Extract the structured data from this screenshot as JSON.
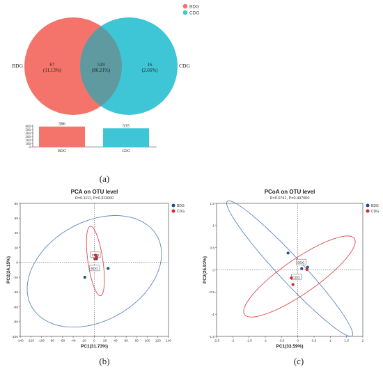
{
  "venn": {
    "legend": [
      {
        "name": "BDG",
        "color": "#f4736a"
      },
      {
        "name": "CDG",
        "color": "#3fc6d6"
      }
    ],
    "left_label": "BDG",
    "right_label": "CDG",
    "left_only": {
      "count": "67",
      "pct": "(11.13%)"
    },
    "shared": {
      "count": "519",
      "pct": "(86.21%)"
    },
    "right_only": {
      "count": "16",
      "pct": "(2.66%)"
    }
  },
  "panel_labels": {
    "a": "(a)",
    "b": "(b)",
    "c": "(c)"
  },
  "chart_data": [
    {
      "type": "bar",
      "categories": [
        "BDG",
        "CDG"
      ],
      "values": [
        586,
        535
      ],
      "data_labels": [
        "586",
        "535"
      ],
      "colors": [
        "#f4736a",
        "#3fc6d6"
      ],
      "ylim": [
        0,
        600
      ],
      "yticks": [
        0,
        100,
        200,
        300,
        400,
        500,
        600
      ]
    },
    {
      "type": "scatter",
      "title": "PCA on OTU level",
      "subtitle": "R=0.1111, P=0.311000",
      "xlabel": "PC1(31.73%)",
      "ylabel": "PC2(24.15%)",
      "xlim": [
        -140,
        140
      ],
      "ylim": [
        -100,
        80
      ],
      "xticks": [
        -140,
        -120,
        -100,
        -80,
        -60,
        -40,
        -20,
        0,
        20,
        40,
        60,
        80,
        100,
        120,
        140
      ],
      "yticks": [
        -100,
        -80,
        -60,
        -40,
        -20,
        0,
        20,
        40,
        60,
        80
      ],
      "legend": [
        {
          "name": "BDG",
          "color": "#1f4e8c"
        },
        {
          "name": "CDG",
          "color": "#d7262b"
        }
      ],
      "series": [
        {
          "name": "BDG",
          "color": "#1f4e8c",
          "points": [
            [
              -18,
              -20
            ],
            [
              26,
              -8
            ],
            [
              4,
              5
            ]
          ]
        },
        {
          "name": "CDG",
          "color": "#d7262b",
          "points": [
            [
              2,
              10
            ],
            [
              4,
              8
            ],
            [
              1,
              5
            ]
          ]
        }
      ],
      "ellipses": [
        {
          "group": "BDG",
          "color": "#5b86c0",
          "cx": 0,
          "cy": -12,
          "rx": 130,
          "ry": 70,
          "angle": 15
        },
        {
          "group": "CDG",
          "color": "#e0484c",
          "cx": 2,
          "cy": 2,
          "rx": 14,
          "ry": 48,
          "angle": 12
        }
      ],
      "annotations": [
        {
          "text": "CDG",
          "x": 2,
          "y": 10
        },
        {
          "text": "BDG",
          "x": 0,
          "y": -8
        }
      ]
    },
    {
      "type": "scatter",
      "title": "PCoA on OTU level",
      "subtitle": "R=0.0741, P=0.497000",
      "xlabel": "PC1(33.59%)",
      "ylabel": "PC2(25.91%)",
      "xlim": [
        -2.5,
        2
      ],
      "ylim": [
        -1.5,
        1.5
      ],
      "xticks": [
        -2.5,
        -2,
        -1.5,
        -1,
        -0.5,
        0,
        0.5,
        1,
        1.5,
        2
      ],
      "yticks": [
        -1.5,
        -1,
        -0.5,
        0,
        0.5,
        1,
        1.5
      ],
      "legend": [
        {
          "name": "BDG",
          "color": "#1f4e8c"
        },
        {
          "name": "CDG",
          "color": "#d7262b"
        }
      ],
      "series": [
        {
          "name": "BDG",
          "color": "#1f4e8c",
          "points": [
            [
              -0.3,
              0.38
            ],
            [
              0.12,
              0.03
            ],
            [
              0.3,
              0.06
            ]
          ]
        },
        {
          "name": "CDG",
          "color": "#d7262b",
          "points": [
            [
              -0.2,
              -0.18
            ],
            [
              -0.15,
              -0.33
            ],
            [
              0.28,
              0.01
            ]
          ]
        }
      ],
      "ellipses": [
        {
          "group": "BDG",
          "color": "#5b86c0",
          "cx": -0.25,
          "cy": 0.03,
          "rx": 2.45,
          "ry": 0.32,
          "angle": -38
        },
        {
          "group": "CDG",
          "color": "#e0484c",
          "cx": 0.05,
          "cy": -0.15,
          "rx": 1.9,
          "ry": 0.42,
          "angle": 26
        }
      ],
      "annotations": [
        {
          "text": "BDG",
          "x": 0.1,
          "y": 0.17
        },
        {
          "text": "CDG",
          "x": -0.05,
          "y": -0.17
        }
      ]
    }
  ]
}
